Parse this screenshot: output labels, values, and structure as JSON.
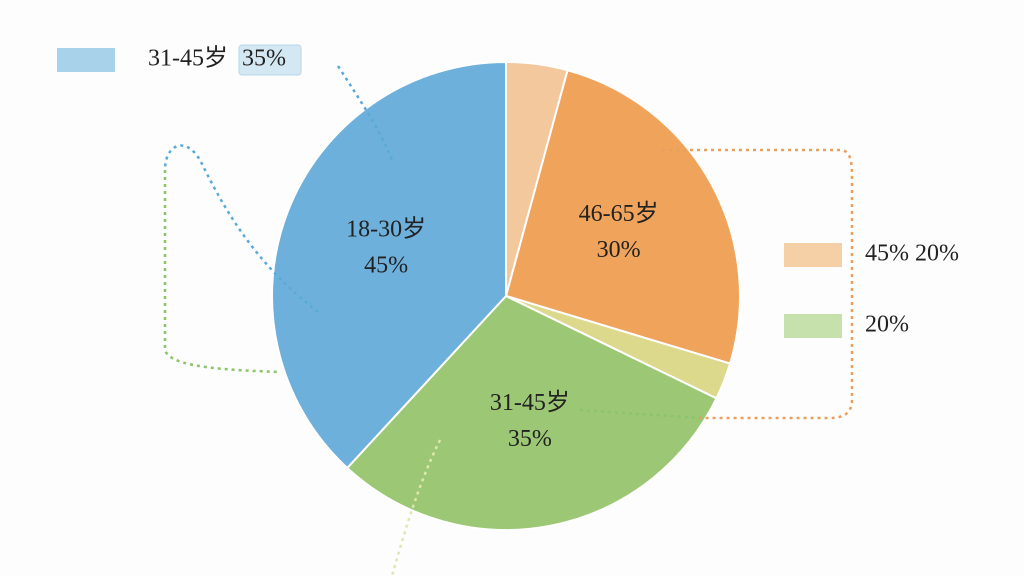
{
  "chart_data": {
    "type": "pie",
    "categories": [
      null,
      "46-65岁",
      null,
      "31-45岁",
      "18-30岁"
    ],
    "values": [
      5,
      30,
      3,
      35,
      45
    ],
    "value_labels": [
      null,
      "30%",
      null,
      "35%",
      "45%"
    ],
    "colors": [
      "#f2c89c",
      "#f0a35a",
      "#dcd88c",
      "#9cc774",
      "#6eb0dc"
    ],
    "legend": [
      {
        "text": "31-45岁",
        "badge": "35%",
        "color": "#a8d2ea"
      },
      {
        "text": "45% 20%",
        "color": "#f5cfa6"
      },
      {
        "text": "20%",
        "color": "#c6e1ab"
      }
    ]
  }
}
